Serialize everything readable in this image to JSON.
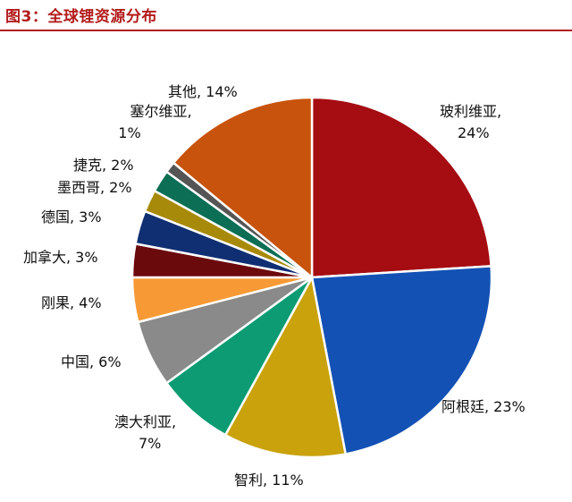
{
  "figure": {
    "title": "图3：全球锂资源分布"
  },
  "chart_data": {
    "type": "pie",
    "start": "12 o'clock",
    "direction": "clockwise",
    "legend": "none",
    "slices": [
      {
        "name": "玻利维亚",
        "value": 24,
        "label_lines": [
          "玻利维亚,",
          "24%"
        ],
        "color": "#a50d12"
      },
      {
        "name": "阿根廷",
        "value": 23,
        "label_lines": [
          "阿根廷, 23%"
        ],
        "color": "#1351b4"
      },
      {
        "name": "智利",
        "value": 11,
        "label_lines": [
          "智利, 11%"
        ],
        "color": "#c9a20c"
      },
      {
        "name": "澳大利亚",
        "value": 7,
        "label_lines": [
          "澳大利亚,",
          "7%"
        ],
        "color": "#0c9b73"
      },
      {
        "name": "中国",
        "value": 6,
        "label_lines": [
          "中国, 6%"
        ],
        "color": "#8a8a8a"
      },
      {
        "name": "刚果",
        "value": 4,
        "label_lines": [
          "刚果, 4%"
        ],
        "color": "#f79a35"
      },
      {
        "name": "加拿大",
        "value": 3,
        "label_lines": [
          "加拿大, 3%"
        ],
        "color": "#6b0a0d"
      },
      {
        "name": "德国",
        "value": 3,
        "label_lines": [
          "德国, 3%"
        ],
        "color": "#0f2f72"
      },
      {
        "name": "墨西哥",
        "value": 2,
        "label_lines": [
          "墨西哥, 2%"
        ],
        "color": "#a88a0a"
      },
      {
        "name": "捷克",
        "value": 2,
        "label_lines": [
          "捷克, 2%"
        ],
        "color": "#0b6e55"
      },
      {
        "name": "塞尔维亚",
        "value": 1,
        "label_lines": [
          "塞尔维亚,",
          "1%"
        ],
        "color": "#555555"
      },
      {
        "name": "其他",
        "value": 14,
        "label_lines": [
          "其他, 14%"
        ],
        "color": "#c8530c"
      }
    ]
  }
}
